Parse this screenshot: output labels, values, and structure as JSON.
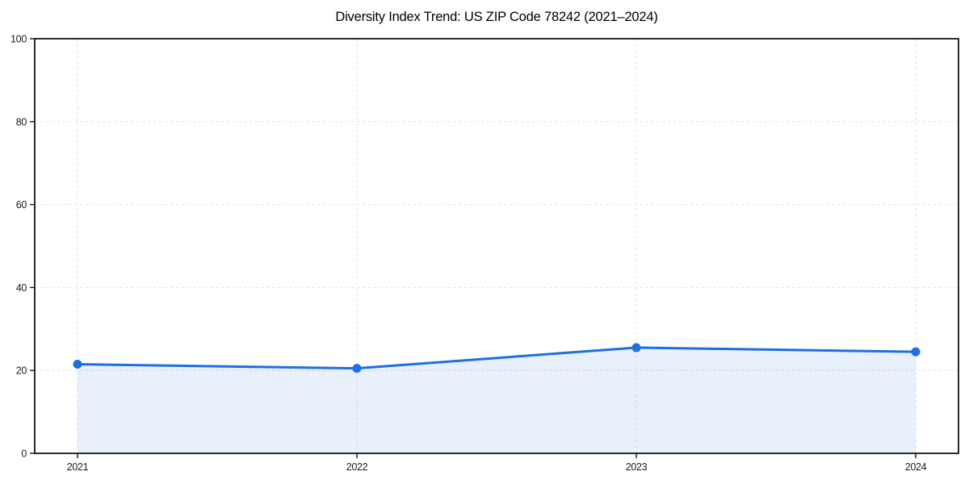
{
  "chart_data": {
    "type": "line",
    "title": "Diversity Index Trend: US ZIP Code 78242 (2021–2024)",
    "x": [
      2021,
      2022,
      2023,
      2024
    ],
    "xtick_labels": [
      "2021",
      "2022",
      "2023",
      "2024"
    ],
    "series": [
      {
        "name": "Diversity Index",
        "values": [
          21.5,
          20.5,
          25.5,
          24.5
        ]
      }
    ],
    "xlabel": "",
    "ylabel": "",
    "ylim": [
      0,
      100
    ],
    "yticks": [
      0,
      20,
      40,
      60,
      80,
      100
    ],
    "grid": true,
    "grid_style": "dashed",
    "legend_position": "none",
    "area_fill": true,
    "colors": {
      "line": "#1e6fe0",
      "marker": "#1e6fe0",
      "fill": "#1e6fe0",
      "fill_opacity": 0.1,
      "grid": "#e2e2e2",
      "spine": "#141414",
      "tick_label": "#1a1a1a",
      "title": "#000000",
      "background": "#ffffff"
    }
  }
}
